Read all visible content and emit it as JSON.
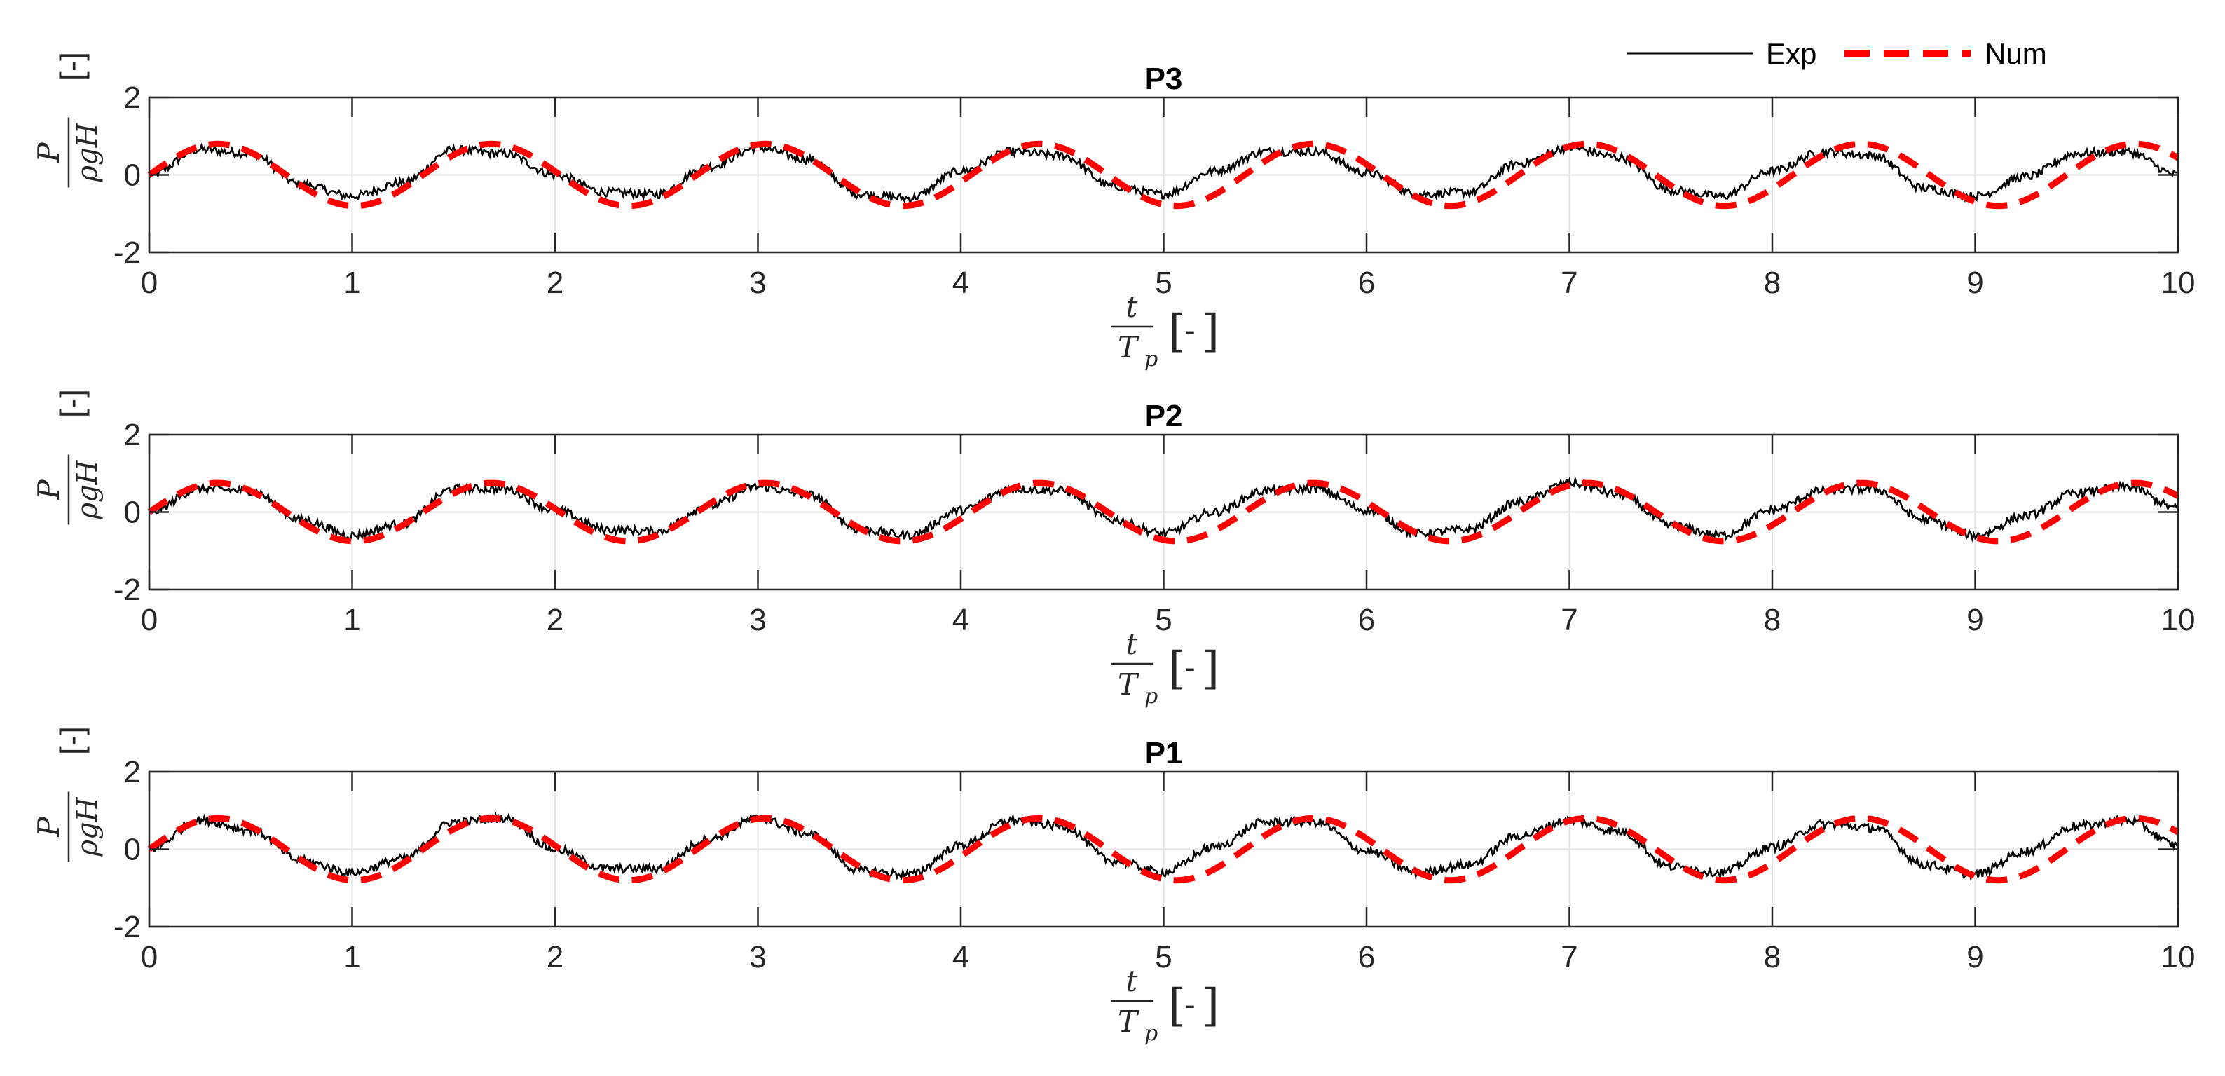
{
  "legend": {
    "items": [
      {
        "label": "Exp",
        "color": "#000000",
        "style": "solid"
      },
      {
        "label": "Num",
        "color": "#ff0000",
        "style": "dashed"
      }
    ]
  },
  "axis_text": {
    "x_numerator": "t",
    "x_denominator_base": "T",
    "x_denominator_sub": "p",
    "y_numerator": "P",
    "y_denominator": "ρgH",
    "unit_bracket_left": "[",
    "unit_bracket_right": "]",
    "unit_dash": "-",
    "y_unit": "[-]"
  },
  "chart_data": [
    {
      "type": "line",
      "title": "P3",
      "xlabel": "t/Tp [-]",
      "ylabel": "P/(ρgH) [-]",
      "xlim": [
        0,
        10
      ],
      "ylim": [
        -2,
        2
      ],
      "xticks": [
        0,
        1,
        2,
        3,
        4,
        5,
        6,
        7,
        8,
        9,
        10
      ],
      "yticks": [
        -2,
        0,
        2
      ],
      "grid": true,
      "series": [
        {
          "name": "Exp",
          "color": "#000000",
          "x": [
            0,
            0.25,
            0.5,
            0.75,
            1,
            1.25,
            1.5,
            1.75,
            2,
            2.25,
            2.5,
            2.75,
            3,
            3.25,
            3.5,
            3.75,
            4,
            4.25,
            4.5,
            4.75,
            5,
            5.25,
            5.5,
            5.75,
            6,
            6.25,
            6.5,
            6.75,
            7,
            7.25,
            7.5,
            7.75,
            8,
            8.25,
            8.5,
            8.75,
            9,
            9.25,
            9.5,
            9.75,
            10
          ],
          "values": [
            0,
            0.65,
            0.55,
            -0.25,
            -0.55,
            -0.2,
            0.65,
            0.55,
            0,
            -0.45,
            -0.5,
            0.2,
            0.7,
            0.4,
            -0.5,
            -0.6,
            0.1,
            0.6,
            0.5,
            -0.3,
            -0.5,
            0.1,
            0.6,
            0.6,
            0.05,
            -0.5,
            -0.45,
            0.3,
            0.7,
            0.45,
            -0.4,
            -0.55,
            0.1,
            0.6,
            0.5,
            -0.35,
            -0.55,
            -0.05,
            0.55,
            0.6,
            0
          ]
        },
        {
          "name": "Num",
          "color": "#ff0000",
          "amplitude": 0.8,
          "period": 1.35,
          "phase": 0
        }
      ]
    },
    {
      "type": "line",
      "title": "P2",
      "xlabel": "t/Tp [-]",
      "ylabel": "P/(ρgH) [-]",
      "xlim": [
        0,
        10
      ],
      "ylim": [
        -2,
        2
      ],
      "xticks": [
        0,
        1,
        2,
        3,
        4,
        5,
        6,
        7,
        8,
        9,
        10
      ],
      "yticks": [
        -2,
        0,
        2
      ],
      "grid": true,
      "series": [
        {
          "name": "Exp",
          "color": "#000000",
          "x": [
            0,
            0.25,
            0.5,
            0.75,
            1,
            1.25,
            1.5,
            1.75,
            2,
            2.25,
            2.5,
            2.75,
            3,
            3.25,
            3.5,
            3.75,
            4,
            4.25,
            4.5,
            4.75,
            5,
            5.25,
            5.5,
            5.75,
            6,
            6.25,
            6.5,
            6.75,
            7,
            7.25,
            7.5,
            7.75,
            8,
            8.25,
            8.5,
            8.75,
            9,
            9.25,
            9.5,
            9.75,
            10
          ],
          "values": [
            0,
            0.6,
            0.55,
            -0.2,
            -0.6,
            -0.3,
            0.6,
            0.6,
            0.05,
            -0.45,
            -0.5,
            0.15,
            0.65,
            0.45,
            -0.45,
            -0.6,
            0.05,
            0.6,
            0.55,
            -0.2,
            -0.55,
            0,
            0.55,
            0.6,
            0.05,
            -0.55,
            -0.45,
            0.25,
            0.75,
            0.45,
            -0.35,
            -0.6,
            0.05,
            0.55,
            0.6,
            -0.2,
            -0.6,
            -0.1,
            0.5,
            0.65,
            0.1
          ]
        },
        {
          "name": "Num",
          "color": "#ff0000",
          "amplitude": 0.75,
          "period": 1.35,
          "phase": 0
        }
      ]
    },
    {
      "type": "line",
      "title": "P1",
      "xlabel": "t/Tp [-]",
      "ylabel": "P/(ρgH) [-]",
      "xlim": [
        0,
        10
      ],
      "ylim": [
        -2,
        2
      ],
      "xticks": [
        0,
        1,
        2,
        3,
        4,
        5,
        6,
        7,
        8,
        9,
        10
      ],
      "yticks": [
        -2,
        0,
        2
      ],
      "grid": true,
      "series": [
        {
          "name": "Exp",
          "color": "#000000",
          "x": [
            0,
            0.25,
            0.5,
            0.75,
            1,
            1.25,
            1.5,
            1.75,
            2,
            2.25,
            2.5,
            2.75,
            3,
            3.25,
            3.5,
            3.75,
            4,
            4.25,
            4.5,
            4.75,
            5,
            5.25,
            5.5,
            5.75,
            6,
            6.25,
            6.5,
            6.75,
            7,
            7.25,
            7.5,
            7.75,
            8,
            8.25,
            8.5,
            8.75,
            9,
            9.25,
            9.5,
            9.75,
            10
          ],
          "values": [
            0,
            0.75,
            0.5,
            -0.3,
            -0.6,
            -0.25,
            0.7,
            0.8,
            0,
            -0.5,
            -0.5,
            0.25,
            0.8,
            0.4,
            -0.55,
            -0.65,
            0.1,
            0.75,
            0.6,
            -0.3,
            -0.6,
            0.05,
            0.7,
            0.7,
            -0.05,
            -0.6,
            -0.4,
            0.35,
            0.75,
            0.45,
            -0.45,
            -0.6,
            0.05,
            0.65,
            0.55,
            -0.4,
            -0.65,
            -0.05,
            0.6,
            0.75,
            0.1
          ]
        },
        {
          "name": "Num",
          "color": "#ff0000",
          "amplitude": 0.8,
          "period": 1.35,
          "phase": 0
        }
      ]
    }
  ]
}
